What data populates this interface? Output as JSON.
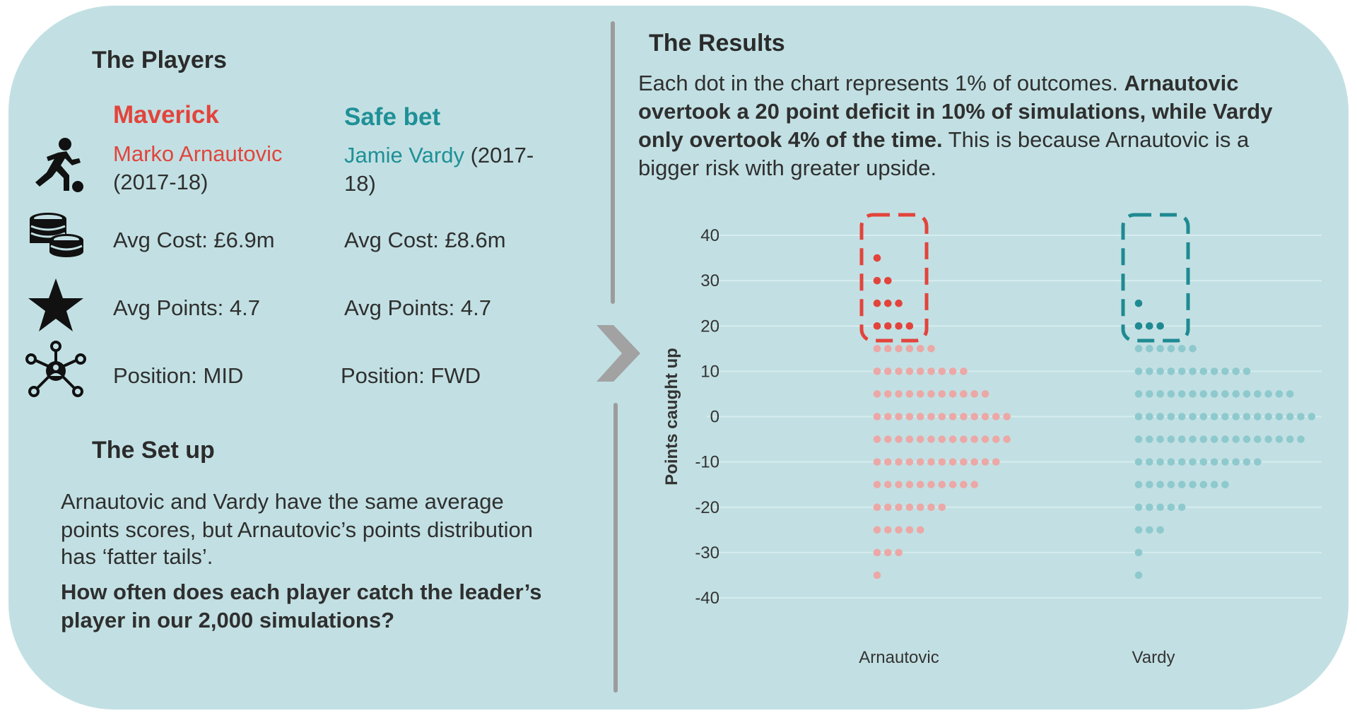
{
  "players": {
    "heading": "The Players",
    "maverick": {
      "label": "Maverick",
      "name": "Marko Arnautovic",
      "years": "(2017-18)",
      "cost": "Avg Cost: £6.9m",
      "points": "Avg Points: 4.7",
      "position": "Position: MID"
    },
    "safe": {
      "label": "Safe bet",
      "name": "Jamie Vardy",
      "years_a": " (2017-",
      "years_b": "18)",
      "cost": "Avg Cost: £8.6m",
      "points": "Avg Points: 4.7",
      "position": "Position: FWD"
    },
    "icons": [
      "football-player-icon",
      "coins-icon",
      "star-icon",
      "network-icon"
    ]
  },
  "setup": {
    "heading": "The Set up",
    "line1": "Arnautovic and Vardy have the same average",
    "line2": "points scores, but Arnautovic’s points distribution",
    "line3": "has ‘fatter tails’.",
    "q1": "How often does each player catch the leader’s",
    "q2": "player in our 2,000 simulations?"
  },
  "results": {
    "heading": "The Results",
    "p1a": "Each dot in the chart represents 1% of outcomes. ",
    "p1b": "Arnautovic",
    "p2": "overtook a 20 point deficit in 10% of simulations, while Vardy",
    "p3a": "only overtook 4% of the time.",
    "p3b": " This is because Arnautovic is a",
    "p4": "bigger risk with greater upside."
  },
  "chart_data": {
    "type": "scatter",
    "subtype": "dot-plot",
    "ylabel": "Points caught up",
    "ylim": [
      -40,
      40
    ],
    "yticks": [
      40,
      30,
      20,
      10,
      0,
      -10,
      -20,
      -30,
      -40
    ],
    "categories": [
      "Arnautovic",
      "Vardy"
    ],
    "unit_per_dot": "1% of outcomes",
    "highlight_threshold": 20,
    "series": [
      {
        "name": "Arnautovic",
        "color_highlight": "#e2443c",
        "color_faded": "#eba8a6",
        "bins": [
          {
            "y": 35,
            "count": 1
          },
          {
            "y": 30,
            "count": 2
          },
          {
            "y": 25,
            "count": 3
          },
          {
            "y": 20,
            "count": 4
          },
          {
            "y": 15,
            "count": 6
          },
          {
            "y": 10,
            "count": 9
          },
          {
            "y": 5,
            "count": 11
          },
          {
            "y": 0,
            "count": 13
          },
          {
            "y": -5,
            "count": 13
          },
          {
            "y": -10,
            "count": 12
          },
          {
            "y": -15,
            "count": 10
          },
          {
            "y": -20,
            "count": 7
          },
          {
            "y": -25,
            "count": 5
          },
          {
            "y": -30,
            "count": 3
          },
          {
            "y": -35,
            "count": 1
          }
        ]
      },
      {
        "name": "Vardy",
        "color_highlight": "#1f8a92",
        "color_faded": "#8ec9cd",
        "bins": [
          {
            "y": 25,
            "count": 1
          },
          {
            "y": 20,
            "count": 3
          },
          {
            "y": 15,
            "count": 6
          },
          {
            "y": 10,
            "count": 11
          },
          {
            "y": 5,
            "count": 15
          },
          {
            "y": 0,
            "count": 17
          },
          {
            "y": -5,
            "count": 16
          },
          {
            "y": -10,
            "count": 12
          },
          {
            "y": -15,
            "count": 9
          },
          {
            "y": -20,
            "count": 5
          },
          {
            "y": -25,
            "count": 3
          },
          {
            "y": -30,
            "count": 1
          },
          {
            "y": -35,
            "count": 1
          }
        ]
      }
    ],
    "grid": true
  }
}
